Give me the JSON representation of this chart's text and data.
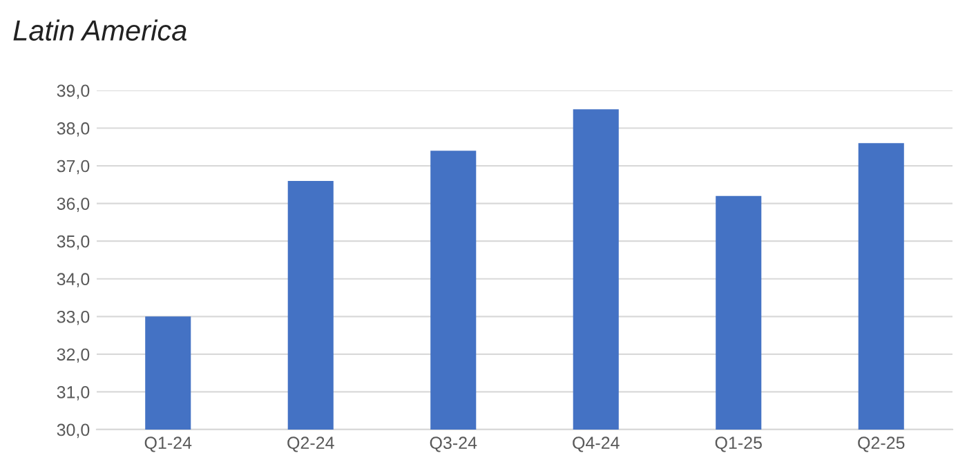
{
  "chart_data": {
    "type": "bar",
    "title": "Latin America",
    "categories": [
      "Q1-24",
      "Q2-24",
      "Q3-24",
      "Q4-24",
      "Q1-25",
      "Q2-25"
    ],
    "values": [
      33.0,
      36.6,
      37.4,
      38.5,
      36.2,
      37.6
    ],
    "color": "#4472c4",
    "ylim": [
      30,
      39
    ],
    "yticks": [
      {
        "value": 30,
        "label": "30,0"
      },
      {
        "value": 31,
        "label": "31,0"
      },
      {
        "value": 32,
        "label": "32,0"
      },
      {
        "value": 33,
        "label": "33,0"
      },
      {
        "value": 34,
        "label": "34,0"
      },
      {
        "value": 35,
        "label": "35,0"
      },
      {
        "value": 36,
        "label": "36,0"
      },
      {
        "value": 37,
        "label": "37,0"
      },
      {
        "value": 38,
        "label": "38,0"
      },
      {
        "value": 39,
        "label": "39,0"
      }
    ],
    "grid": "y"
  }
}
